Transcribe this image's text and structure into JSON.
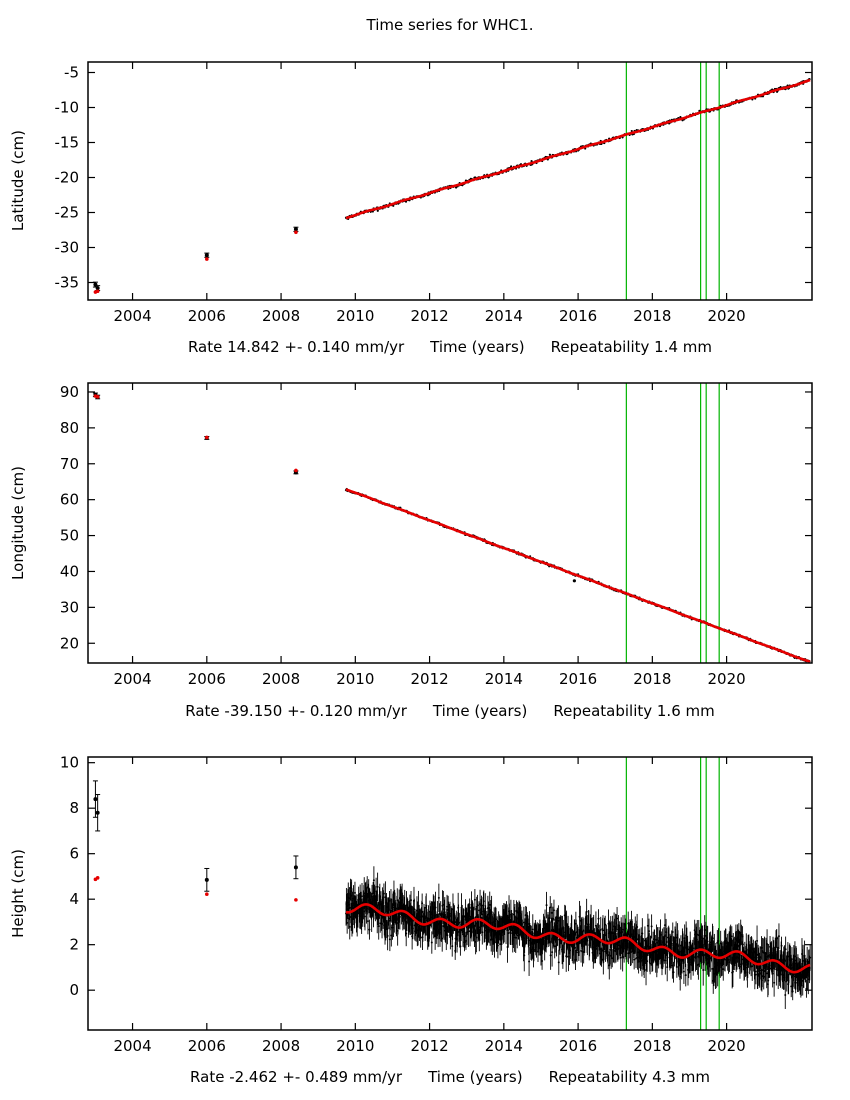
{
  "title": "Time series for WHC1.",
  "colors": {
    "data": "#000000",
    "model": "#e60000",
    "event_line": "#00b400",
    "axis": "#000000"
  },
  "panels": [
    {
      "ylabel": "Latitude (cm)",
      "rate_label": "Rate 14.842 +- 0.140 mm/yr",
      "time_label": "Time (years)",
      "repeatability_label": "Repeatability 1.4 mm"
    },
    {
      "ylabel": "Longitude (cm)",
      "rate_label": "Rate -39.150 +- 0.120 mm/yr",
      "time_label": "Time (years)",
      "repeatability_label": "Repeatability 1.6 mm"
    },
    {
      "ylabel": "Height (cm)",
      "rate_label": "Rate -2.462 +- 0.489 mm/yr",
      "time_label": "Time (years)",
      "repeatability_label": "Repeatability 4.3 mm"
    }
  ],
  "chart_data": [
    {
      "type": "scatter",
      "title": "Time series for WHC1.",
      "ylabel": "Latitude (cm)",
      "xlabel": "Time (years)",
      "rate_text": "Rate 14.842 +- 0.140 mm/yr",
      "repeatability_text": "Repeatability 1.4 mm",
      "xlim": [
        2002.8,
        2022.3
      ],
      "ylim": [
        -37.5,
        -3.5
      ],
      "xticks": [
        2004,
        2006,
        2008,
        2010,
        2012,
        2014,
        2016,
        2018,
        2020
      ],
      "yticks": [
        -35,
        -30,
        -25,
        -20,
        -15,
        -10,
        -5
      ],
      "vlines": [
        2017.3,
        2019.3,
        2019.45,
        2019.8
      ],
      "early_points": [
        {
          "x": 2003.0,
          "y": -35.3,
          "err": 0.35
        },
        {
          "x": 2003.06,
          "y": -35.8,
          "err": 0.35
        },
        {
          "x": 2006.0,
          "y": -31.1,
          "err": 0.3
        },
        {
          "x": 2008.4,
          "y": -27.4,
          "err": 0.3
        }
      ],
      "outliers": [],
      "dense": {
        "start": 2009.75,
        "end": 2022.25,
        "step": 0.019,
        "noise_sd": 0.12,
        "point_err": 0.12
      },
      "trend": {
        "x0": 2009.75,
        "y0": -25.75,
        "slope": 1.57,
        "seasonal_amp": 0.05,
        "wiggle_amp": 0,
        "wiggle_period": 1
      },
      "dot_r": 1.1,
      "seed": 11
    },
    {
      "type": "scatter",
      "ylabel": "Longitude (cm)",
      "xlabel": "Time (years)",
      "rate_text": "Rate -39.150 +- 0.120 mm/yr",
      "repeatability_text": "Repeatability 1.6 mm",
      "xlim": [
        2002.8,
        2022.3
      ],
      "ylim": [
        14.5,
        92.5
      ],
      "xticks": [
        2004,
        2006,
        2008,
        2010,
        2012,
        2014,
        2016,
        2018,
        2020
      ],
      "yticks": [
        20,
        30,
        40,
        50,
        60,
        70,
        80,
        90
      ],
      "vlines": [
        2017.3,
        2019.3,
        2019.45,
        2019.8
      ],
      "early_points": [
        {
          "x": 2003.0,
          "y": 89.2,
          "err": 0.5
        },
        {
          "x": 2003.06,
          "y": 88.6,
          "err": 0.5
        },
        {
          "x": 2006.0,
          "y": 77.2,
          "err": 0.4
        },
        {
          "x": 2008.4,
          "y": 67.6,
          "err": 0.4
        }
      ],
      "outliers": [
        {
          "x": 2015.9,
          "y": 37.4,
          "err": 0.35
        }
      ],
      "dense": {
        "start": 2009.75,
        "end": 2022.25,
        "step": 0.019,
        "noise_sd": 0.15,
        "point_err": 0.15
      },
      "trend": {
        "x0": 2009.75,
        "y0": 62.9,
        "slope": -3.85,
        "seasonal_amp": 0.05,
        "wiggle_amp": 0,
        "wiggle_period": 1
      },
      "dot_r": 1.1,
      "seed": 22
    },
    {
      "type": "scatter",
      "ylabel": "Height (cm)",
      "xlabel": "Time (years)",
      "rate_text": "Rate -2.462 +- 0.489 mm/yr",
      "repeatability_text": "Repeatability 4.3 mm",
      "xlim": [
        2002.8,
        2022.3
      ],
      "ylim": [
        -1.75,
        10.25
      ],
      "xticks": [
        2004,
        2006,
        2008,
        2010,
        2012,
        2014,
        2016,
        2018,
        2020
      ],
      "yticks": [
        0,
        2,
        4,
        6,
        8,
        10
      ],
      "vlines": [
        2017.3,
        2019.3,
        2019.45,
        2019.8
      ],
      "early_points": [
        {
          "x": 2003.0,
          "y": 8.4,
          "err": 0.8
        },
        {
          "x": 2003.06,
          "y": 7.8,
          "err": 0.8
        },
        {
          "x": 2006.0,
          "y": 4.85,
          "err": 0.5
        },
        {
          "x": 2008.4,
          "y": 5.4,
          "err": 0.5
        }
      ],
      "outliers": [],
      "dense": {
        "start": 2009.75,
        "end": 2022.25,
        "step": 0.01,
        "noise_sd": 0.45,
        "point_err": 0.55
      },
      "trend": {
        "x0": 2009.75,
        "y0": 3.6,
        "slope": -0.208,
        "seasonal_amp": 0.18,
        "wiggle_amp": 0.12,
        "wiggle_period": 3.2
      },
      "dot_r": 1.0,
      "seed": 33
    }
  ]
}
